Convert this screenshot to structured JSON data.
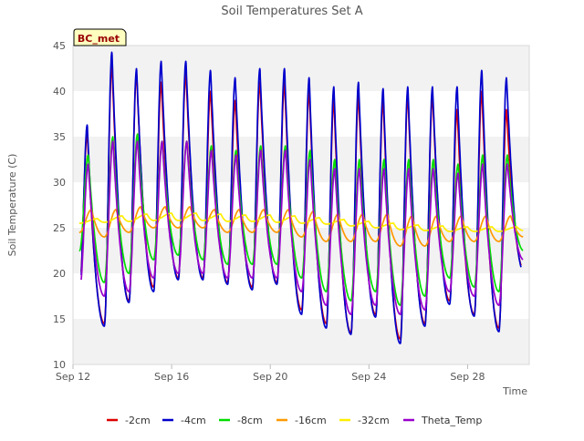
{
  "chart_data": {
    "type": "line",
    "title": "Soil Temperatures Set A",
    "xlabel": "Time",
    "ylabel": "Soil Temperature (C)",
    "site_badge": "BC_met",
    "xlim": [
      "Sep 12",
      "Sep 30 12:00"
    ],
    "ylim": [
      10,
      45
    ],
    "yticks": [
      10,
      15,
      20,
      25,
      30,
      35,
      40,
      45
    ],
    "xticks": [
      {
        "date": "Sep 12",
        "label": "Sep 12"
      },
      {
        "date": "Sep 16",
        "label": "Sep 16"
      },
      {
        "date": "Sep 20",
        "label": "Sep 20"
      },
      {
        "date": "Sep 24",
        "label": "Sep 24"
      },
      {
        "date": "Sep 28",
        "label": "Sep 28"
      }
    ],
    "grid": "alternating horizontal bands",
    "legend_position": "bottom",
    "day_starts": [
      "Sep 12",
      "Sep 13",
      "Sep 14",
      "Sep 15",
      "Sep 16",
      "Sep 17",
      "Sep 18",
      "Sep 19",
      "Sep 20",
      "Sep 21",
      "Sep 22",
      "Sep 23",
      "Sep 24",
      "Sep 25",
      "Sep 26",
      "Sep 27",
      "Sep 28",
      "Sep 29",
      "Sep 30"
    ],
    "series": [
      {
        "name": "-2cm",
        "color": "#dd0000",
        "start": "Sep 12 08:00",
        "end": "Sep 30 04:00",
        "daily_min": [
          18.5,
          14.5,
          17.0,
          18.5,
          19.5,
          19.5,
          19.0,
          18.5,
          19.0,
          16.0,
          14.5,
          13.5,
          15.5,
          12.8,
          14.5,
          17.0,
          15.5,
          14.0,
          20.5
        ],
        "daily_max": [
          35.5,
          43.0,
          42.0,
          41.0,
          42.0,
          40.0,
          39.0,
          41.0,
          41.0,
          40.0,
          39.0,
          39.5,
          39.0,
          39.5,
          39.5,
          38.0,
          40.0,
          38.0,
          38.0
        ]
      },
      {
        "name": "-4cm",
        "color": "#0000cc",
        "start": "Sep 12 08:00",
        "end": "Sep 30 04:00",
        "daily_min": [
          18.0,
          14.2,
          16.8,
          18.0,
          19.3,
          19.3,
          18.8,
          18.2,
          18.8,
          15.5,
          14.0,
          13.3,
          15.2,
          12.3,
          14.2,
          16.6,
          15.3,
          13.6,
          20.2
        ],
        "daily_max": [
          36.3,
          44.3,
          42.5,
          43.3,
          43.3,
          42.3,
          41.5,
          42.5,
          42.5,
          41.5,
          40.5,
          41.0,
          40.3,
          40.5,
          40.5,
          40.5,
          42.3,
          41.5,
          41.5
        ]
      },
      {
        "name": "-8cm",
        "color": "#00dd00",
        "start": "Sep 12 06:00",
        "end": "Sep 30 06:00",
        "daily_min": [
          22.5,
          19.0,
          20.0,
          21.5,
          22.0,
          21.5,
          21.0,
          21.0,
          21.0,
          19.5,
          18.0,
          17.0,
          18.0,
          16.5,
          17.5,
          19.5,
          18.5,
          18.0,
          22.5
        ],
        "daily_max": [
          33.0,
          35.0,
          35.3,
          34.5,
          34.5,
          34.0,
          33.5,
          34.0,
          34.0,
          33.5,
          32.5,
          32.5,
          32.5,
          32.5,
          32.5,
          32.0,
          33.0,
          33.0,
          32.5
        ]
      },
      {
        "name": "-16cm",
        "color": "#ff9900",
        "start": "Sep 12 06:00",
        "end": "Sep 30 06:00",
        "daily_min": [
          24.5,
          24.0,
          24.5,
          25.0,
          25.0,
          25.0,
          24.5,
          24.5,
          24.5,
          24.0,
          23.5,
          23.5,
          23.5,
          23.0,
          23.0,
          23.5,
          23.5,
          23.5,
          24.0
        ],
        "daily_max": [
          27.0,
          27.0,
          27.3,
          27.3,
          27.3,
          27.0,
          27.0,
          27.0,
          27.0,
          26.8,
          26.5,
          26.5,
          26.5,
          26.3,
          26.3,
          26.3,
          26.3,
          26.3,
          26.0
        ]
      },
      {
        "name": "-32cm",
        "color": "#ffee00",
        "start": "Sep 12 06:00",
        "end": "Sep 30 06:00",
        "daily_min": [
          25.5,
          25.6,
          25.7,
          25.8,
          25.8,
          25.8,
          25.7,
          25.7,
          25.6,
          25.5,
          25.4,
          25.2,
          25.0,
          24.8,
          24.7,
          24.6,
          24.6,
          24.6,
          24.7
        ],
        "daily_max": [
          26.0,
          26.3,
          26.5,
          26.6,
          26.6,
          26.5,
          26.4,
          26.4,
          26.3,
          26.1,
          25.9,
          25.7,
          25.5,
          25.3,
          25.2,
          25.1,
          25.1,
          25.1,
          25.1
        ]
      },
      {
        "name": "Theta_Temp",
        "color": "#9900cc",
        "start": "Sep 12 08:00",
        "end": "Sep 30 06:00",
        "daily_min": [
          18.2,
          17.5,
          18.0,
          19.5,
          20.0,
          20.0,
          19.5,
          19.5,
          19.5,
          18.0,
          16.5,
          15.5,
          16.5,
          15.5,
          16.0,
          18.0,
          17.5,
          16.5,
          21.5
        ],
        "daily_max": [
          32.0,
          34.5,
          34.5,
          34.5,
          34.5,
          33.5,
          33.0,
          33.5,
          33.5,
          32.5,
          31.5,
          31.5,
          31.5,
          31.5,
          31.5,
          31.0,
          32.0,
          32.0,
          31.5
        ]
      }
    ]
  }
}
